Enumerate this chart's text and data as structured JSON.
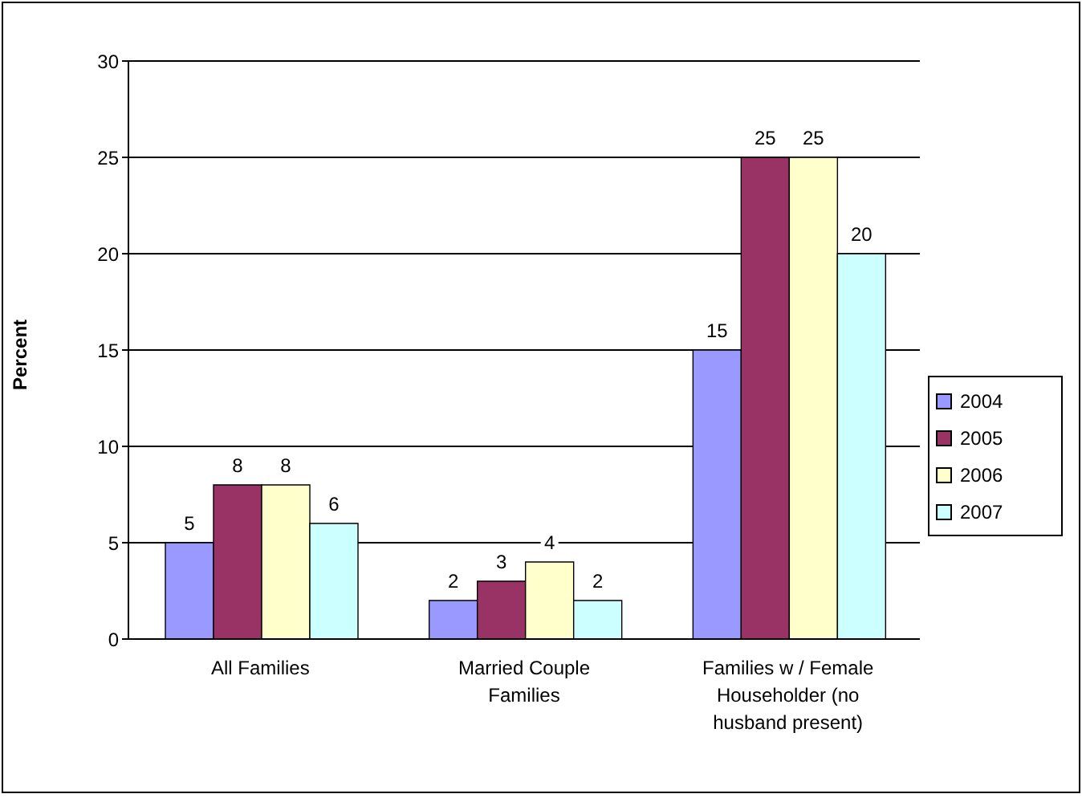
{
  "chart_data": {
    "type": "bar",
    "ylabel": "Percent",
    "categories": [
      "All Families",
      "Married Couple Families",
      "Families w / Female Householder (no husband present)"
    ],
    "series": [
      {
        "name": "2004",
        "color": "#9999ff",
        "values": [
          5,
          2,
          15
        ]
      },
      {
        "name": "2005",
        "color": "#993366",
        "values": [
          8,
          3,
          25
        ]
      },
      {
        "name": "2006",
        "color": "#ffffcc",
        "values": [
          8,
          4,
          25
        ]
      },
      {
        "name": "2007",
        "color": "#ccffff",
        "values": [
          6,
          2,
          20
        ]
      }
    ],
    "ylim": [
      0,
      30
    ],
    "yticks": [
      0,
      5,
      10,
      15,
      20,
      25,
      30
    ],
    "grid": "y",
    "legend": "right",
    "data_labels": true
  }
}
